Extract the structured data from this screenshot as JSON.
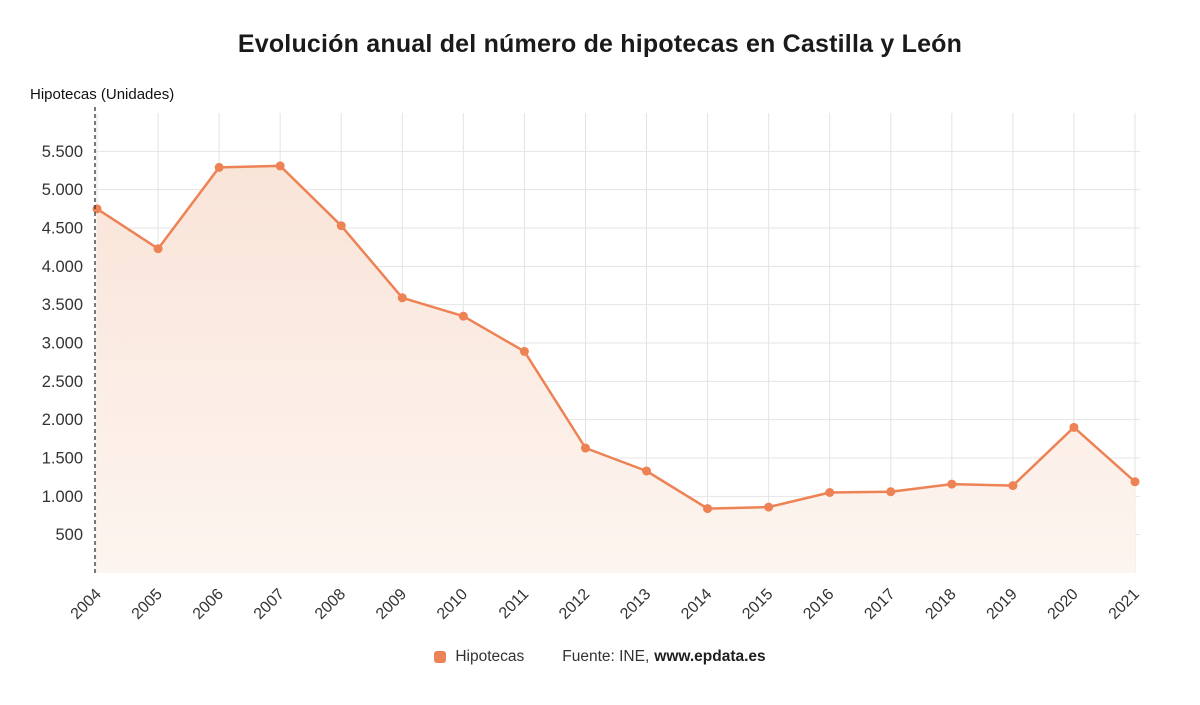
{
  "title": "Evolución anual del número de hipotecas en Castilla y León",
  "axis_title": "Hipotecas (Unidades)",
  "legend": {
    "series_label": "Hipotecas",
    "source_prefix": "Fuente: INE,",
    "source_link": "www.epdata.es"
  },
  "colors": {
    "line": "#ed8355",
    "point": "#ed8355",
    "area_top": "#f9e4d8",
    "area_bottom": "#fdf5f0",
    "grid": "#e4e4e4",
    "axis": "#333333",
    "text": "#333333",
    "title": "#1a1a1a"
  },
  "chart_data": {
    "type": "line",
    "title": "Evolución anual del número de hipotecas en Castilla y León",
    "xlabel": "",
    "ylabel": "Hipotecas (Unidades)",
    "categories": [
      "2004",
      "2005",
      "2006",
      "2007",
      "2008",
      "2009",
      "2010",
      "2011",
      "2012",
      "2013",
      "2014",
      "2015",
      "2016",
      "2017",
      "2018",
      "2019",
      "2020",
      "2021"
    ],
    "series": [
      {
        "name": "Hipotecas",
        "values": [
          4750,
          4230,
          5290,
          5310,
          4530,
          3590,
          3350,
          2890,
          1630,
          1330,
          840,
          860,
          1050,
          1060,
          1160,
          1140,
          1900,
          1190
        ]
      }
    ],
    "ylim": [
      0,
      6000
    ],
    "yticks": [
      500,
      1000,
      1500,
      2000,
      2500,
      3000,
      3500,
      4000,
      4500,
      5000,
      5500
    ],
    "ytick_labels": [
      "500",
      "1.000",
      "1.500",
      "2.000",
      "2.500",
      "3.000",
      "3.500",
      "4.000",
      "4.500",
      "5.000",
      "5.500"
    ],
    "grid": true,
    "legend_position": "bottom",
    "marker": "circle"
  }
}
